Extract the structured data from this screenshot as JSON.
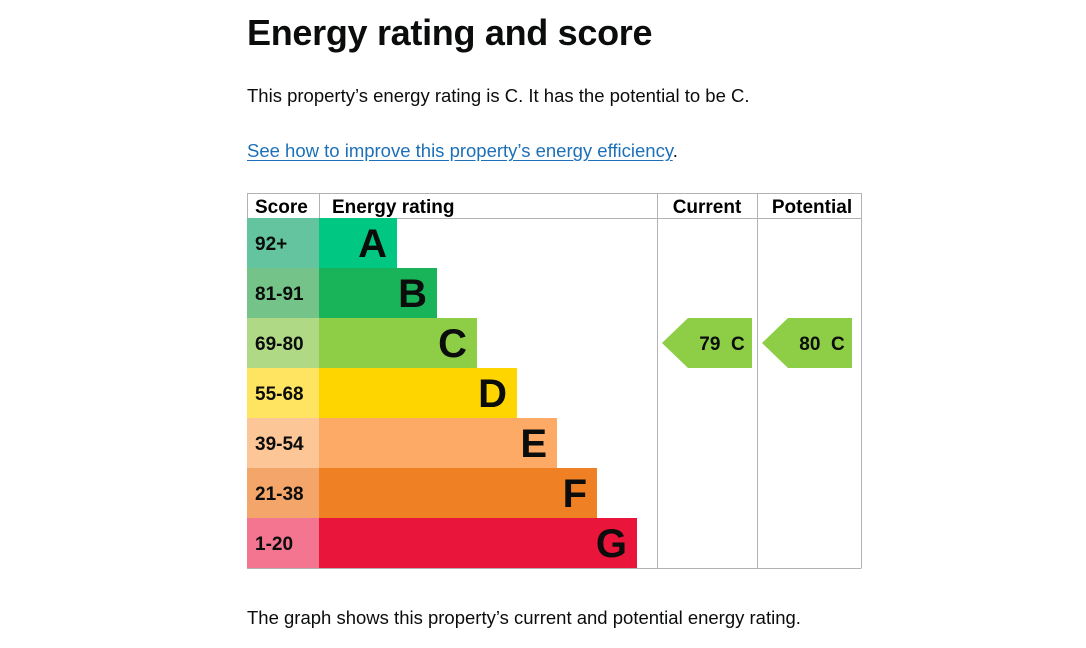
{
  "page": {
    "heading": "Energy rating and score",
    "intro": "This property’s energy rating is C. It has the potential to be C.",
    "link_text": "See how to improve this property’s energy efficiency",
    "link_suffix": ".",
    "caption": "The graph shows this property’s current and potential energy rating."
  },
  "chart_data": {
    "type": "bar",
    "headers": {
      "score": "Score",
      "rating": "Energy rating",
      "current": "Current",
      "potential": "Potential"
    },
    "bands": [
      {
        "score": "92+",
        "letter": "A",
        "score_color": "#63c49f",
        "bar_color": "#00c781"
      },
      {
        "score": "81-91",
        "letter": "B",
        "score_color": "#74c48a",
        "bar_color": "#19b459"
      },
      {
        "score": "69-80",
        "letter": "C",
        "score_color": "#b0d986",
        "bar_color": "#8dce46"
      },
      {
        "score": "55-68",
        "letter": "D",
        "score_color": "#ffe462",
        "bar_color": "#ffd500"
      },
      {
        "score": "39-54",
        "letter": "E",
        "score_color": "#fdc697",
        "bar_color": "#fcaa65"
      },
      {
        "score": "21-38",
        "letter": "F",
        "score_color": "#f4a66a",
        "bar_color": "#ef8023"
      },
      {
        "score": "1-20",
        "letter": "G",
        "score_color": "#f37590",
        "bar_color": "#e9153b"
      }
    ],
    "current": {
      "score": 79,
      "letter": "C",
      "label": "79  C",
      "color": "#8dce46"
    },
    "potential": {
      "score": 80,
      "letter": "C",
      "label": "80  C",
      "color": "#8dce46"
    }
  }
}
